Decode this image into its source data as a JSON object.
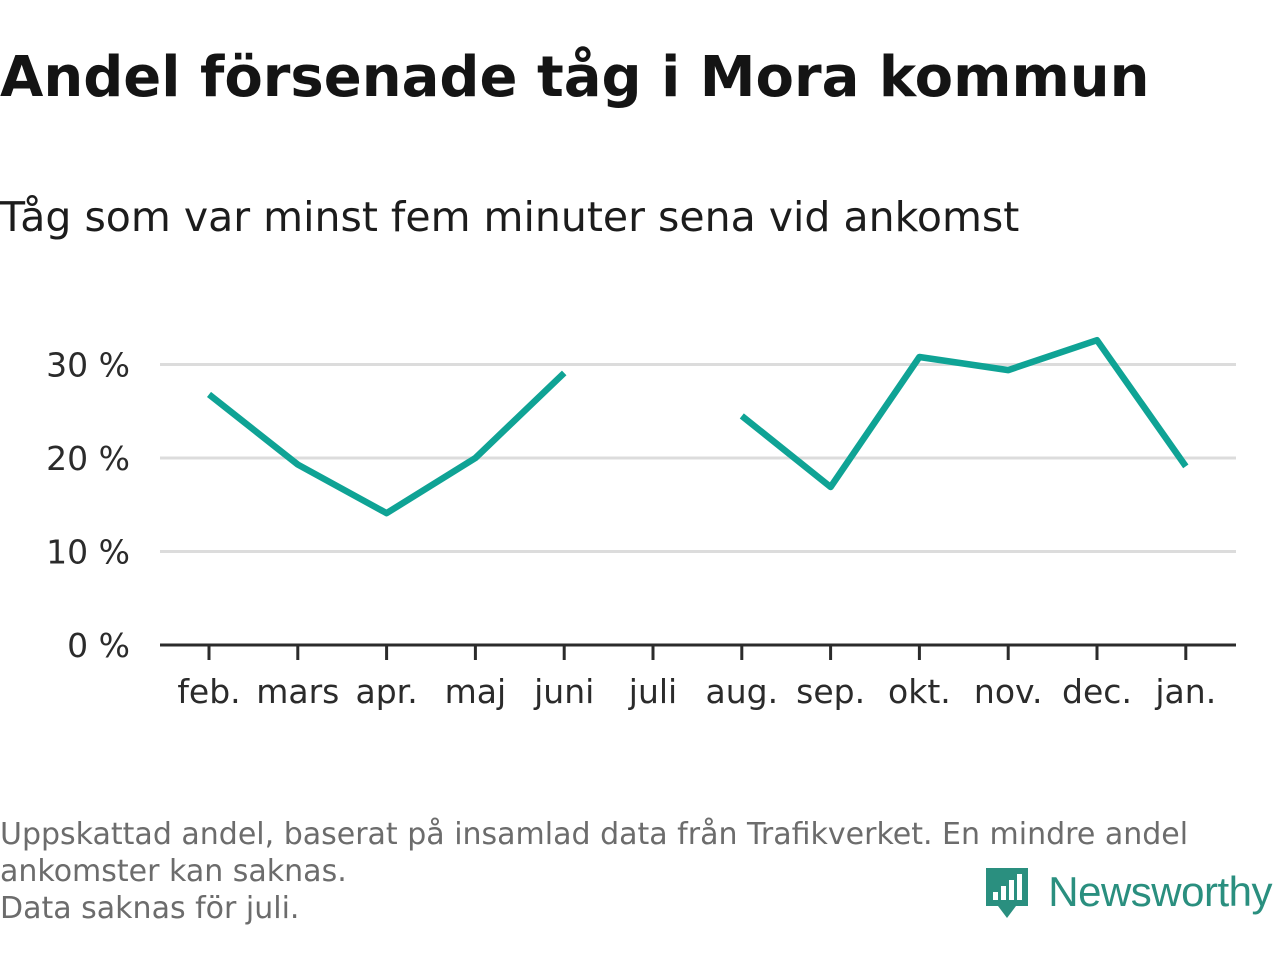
{
  "header": {
    "title": "Andel försenade tåg i Mora kommun",
    "subtitle": "Tåg som var minst fem minuter sena vid ankomst"
  },
  "footer": {
    "note_line1": "Uppskattad andel, baserat på insamlad data från Trafikverket. En mindre andel",
    "note_line2": "ankomster kan saknas.",
    "note_line3": "Data saknas för juli."
  },
  "brand": {
    "name": "Newsworthy",
    "color": "#2a8f7f"
  },
  "chart_data": {
    "type": "line",
    "title": "Andel försenade tåg i Mora kommun",
    "subtitle": "Tåg som var minst fem minuter sena vid ankomst",
    "categories": [
      "feb.",
      "mars",
      "apr.",
      "maj",
      "juni",
      "juli",
      "aug.",
      "sep.",
      "okt.",
      "nov.",
      "dec.",
      "jan."
    ],
    "values": [
      26.8,
      19.3,
      14.1,
      20.0,
      29.1,
      null,
      24.5,
      16.9,
      30.8,
      29.4,
      32.6,
      19.1
    ],
    "y_ticks": [
      0,
      10,
      20,
      30
    ],
    "y_tick_labels": [
      "0 %",
      "10 %",
      "20 %",
      "30 %"
    ],
    "ylim": [
      0,
      35
    ],
    "grid": true,
    "line_color": "#0fa395",
    "xlabel": "",
    "ylabel": ""
  }
}
